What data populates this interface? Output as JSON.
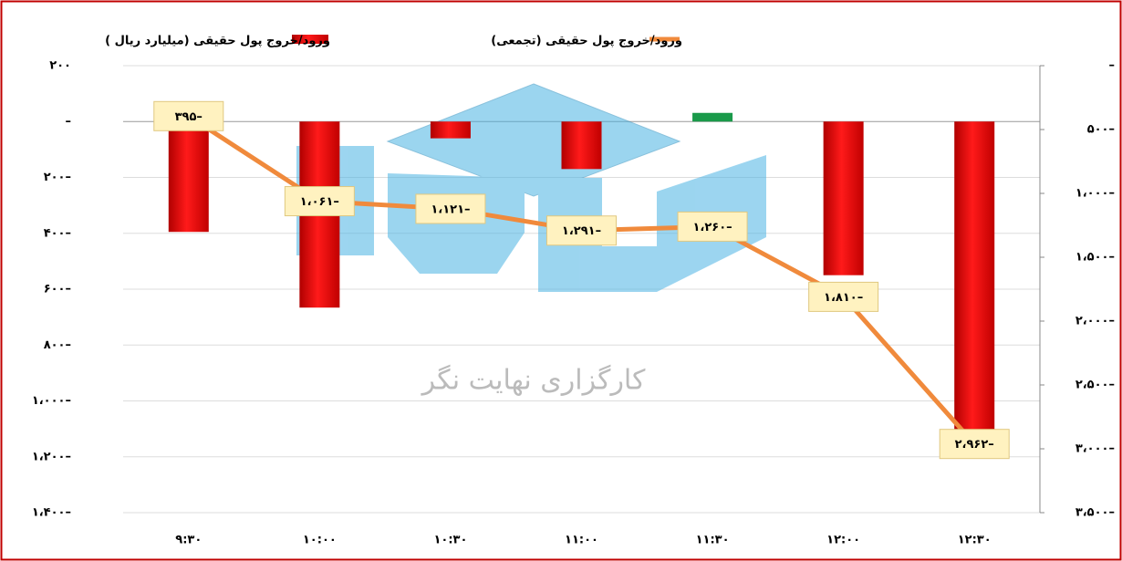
{
  "chart_data": {
    "type": "bar_line",
    "legend": [
      "ورود/خروج پول حقیقی (میلیارد ریال )",
      "ورود/خروج پول حقیقی (تجمعی)"
    ],
    "watermark": "کارگزاری نهایت نگر",
    "categories": [
      "۹:۳۰",
      "۱۰:۰۰",
      "۱۰:۳۰",
      "۱۱:۰۰",
      "۱۱:۳۰",
      "۱۲:۰۰",
      "۱۲:۳۰"
    ],
    "series": [
      {
        "name": "ورود/خروج پول حقیقی (میلیارد ریال )",
        "type": "bar",
        "color": "#e00000",
        "positive_color": "#1a9a4a",
        "values": [
          -395,
          -666,
          -60,
          -170,
          31,
          -550,
          -1152
        ]
      },
      {
        "name": "ورود/خروج پول حقیقی (تجمعی)",
        "type": "line",
        "axis": "y2",
        "color": "#f08a3c",
        "values": [
          -395,
          -1061,
          -1121,
          -1291,
          -1260,
          -1810,
          -2962
        ],
        "value_labels": [
          "۳۹۵–",
          "۱،۰۶۱–",
          "۱،۱۲۱–",
          "۱،۲۹۱–",
          "۱،۲۶۰–",
          "۱،۸۱۰–",
          "۲،۹۶۲–"
        ]
      }
    ],
    "ylim": [
      -1400,
      200
    ],
    "yticks": [
      {
        "value": 200,
        "label": "۲۰۰"
      },
      {
        "value": 0,
        "label": "–"
      },
      {
        "value": -200,
        "label": "۲۰۰–"
      },
      {
        "value": -400,
        "label": "۴۰۰–"
      },
      {
        "value": -600,
        "label": "۶۰۰–"
      },
      {
        "value": -800,
        "label": "۸۰۰–"
      },
      {
        "value": -1000,
        "label": "۱،۰۰۰–"
      },
      {
        "value": -1200,
        "label": "۱،۲۰۰–"
      },
      {
        "value": -1400,
        "label": "۱،۴۰۰–"
      }
    ],
    "y2lim": [
      -3500,
      0
    ],
    "y2ticks": [
      {
        "value": 0,
        "label": "–"
      },
      {
        "value": -500,
        "label": "۵۰۰–"
      },
      {
        "value": -1000,
        "label": "۱،۰۰۰–"
      },
      {
        "value": -1500,
        "label": "۱،۵۰۰–"
      },
      {
        "value": -2000,
        "label": "۲،۰۰۰–"
      },
      {
        "value": -2500,
        "label": "۲،۵۰۰–"
      },
      {
        "value": -3000,
        "label": "۳،۰۰۰–"
      },
      {
        "value": -3500,
        "label": "۳،۵۰۰–"
      }
    ],
    "grid": true
  }
}
